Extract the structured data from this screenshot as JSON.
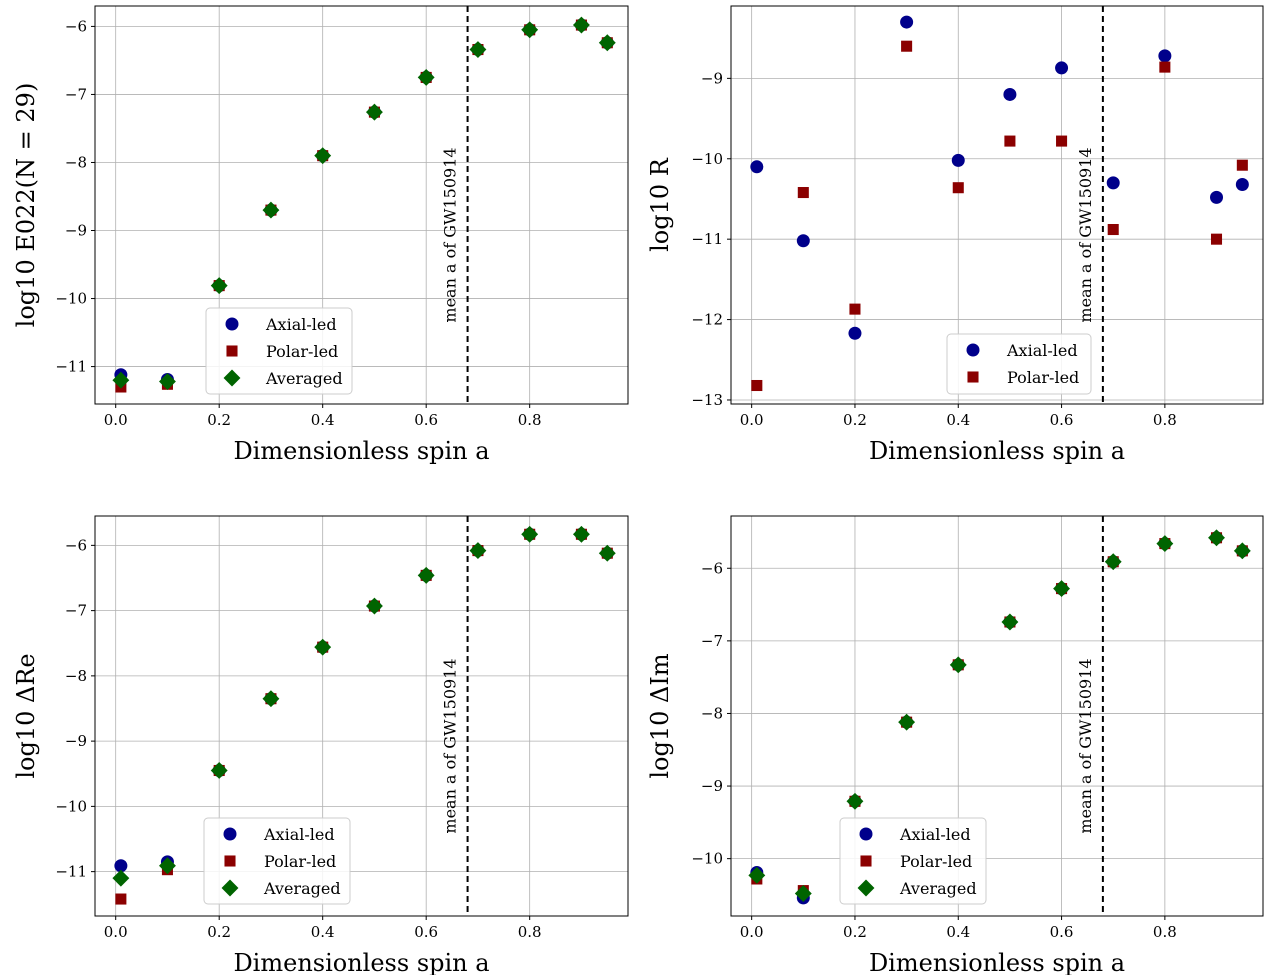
{
  "chart_data": [
    {
      "type": "scatter",
      "xlabel": "Dimensionless spin a",
      "ylabel": "log10 E022(N = 29)",
      "xlim": [
        -0.04,
        0.99
      ],
      "ylim": [
        -11.55,
        -5.7
      ],
      "xticks": [
        0.0,
        0.2,
        0.4,
        0.6,
        0.8
      ],
      "xtick_labels": [
        "0.0",
        "0.2",
        "0.4",
        "0.6",
        "0.8"
      ],
      "yticks": [
        -11,
        -10,
        -9,
        -8,
        -7,
        -6
      ],
      "ytick_labels": [
        "−11",
        "−10",
        "−9",
        "−8",
        "−7",
        "−6"
      ],
      "grid": true,
      "legend_position": "lower-center",
      "vline": {
        "x": 0.68,
        "label": "mean a of GW150914",
        "style": "dashed"
      },
      "series": [
        {
          "name": "Axial-led",
          "marker": "circle",
          "color": "#00008b",
          "x": [
            0.01,
            0.1,
            0.2,
            0.3,
            0.4,
            0.5,
            0.6,
            0.7,
            0.8,
            0.9,
            0.95
          ],
          "y": [
            -11.12,
            -11.19,
            -9.81,
            -8.7,
            -7.9,
            -7.26,
            -6.75,
            -6.34,
            -6.05,
            -5.98,
            -6.24
          ]
        },
        {
          "name": "Polar-led",
          "marker": "square",
          "color": "#8b0000",
          "x": [
            0.01,
            0.1,
            0.2,
            0.3,
            0.4,
            0.5,
            0.6,
            0.7,
            0.8,
            0.9,
            0.95
          ],
          "y": [
            -11.3,
            -11.26,
            -9.81,
            -8.7,
            -7.9,
            -7.26,
            -6.75,
            -6.34,
            -6.05,
            -5.98,
            -6.24
          ]
        },
        {
          "name": "Averaged",
          "marker": "diamond",
          "color": "#006400",
          "x": [
            0.01,
            0.1,
            0.2,
            0.3,
            0.4,
            0.5,
            0.6,
            0.7,
            0.8,
            0.9,
            0.95
          ],
          "y": [
            -11.2,
            -11.22,
            -9.81,
            -8.7,
            -7.9,
            -7.26,
            -6.75,
            -6.34,
            -6.05,
            -5.98,
            -6.24
          ]
        }
      ]
    },
    {
      "type": "scatter",
      "xlabel": "Dimensionless spin a",
      "ylabel": "log10 R",
      "xlim": [
        -0.04,
        0.99
      ],
      "ylim": [
        -13.05,
        -8.1
      ],
      "xticks": [
        0.0,
        0.2,
        0.4,
        0.6,
        0.8
      ],
      "xtick_labels": [
        "0.0",
        "0.2",
        "0.4",
        "0.6",
        "0.8"
      ],
      "yticks": [
        -13,
        -12,
        -11,
        -10,
        -9
      ],
      "ytick_labels": [
        "−13",
        "−12",
        "−11",
        "−10",
        "−9"
      ],
      "grid": true,
      "legend_position": "lower-right",
      "vline": {
        "x": 0.68,
        "label": "mean a of GW150914",
        "style": "dashed"
      },
      "series": [
        {
          "name": "Axial-led",
          "marker": "circle",
          "color": "#00008b",
          "x": [
            0.01,
            0.1,
            0.2,
            0.3,
            0.4,
            0.5,
            0.6,
            0.7,
            0.8,
            0.9,
            0.95
          ],
          "y": [
            -10.1,
            -11.02,
            -12.17,
            -8.3,
            -10.02,
            -9.2,
            -8.87,
            -10.3,
            -8.72,
            -10.48,
            -10.32
          ]
        },
        {
          "name": "Polar-led",
          "marker": "square",
          "color": "#8b0000",
          "x": [
            0.01,
            0.1,
            0.2,
            0.3,
            0.4,
            0.5,
            0.6,
            0.7,
            0.8,
            0.9,
            0.95
          ],
          "y": [
            -12.82,
            -10.42,
            -11.87,
            -8.6,
            -10.36,
            -9.78,
            -9.78,
            -10.88,
            -8.86,
            -11.0,
            -10.08
          ]
        }
      ]
    },
    {
      "type": "scatter",
      "xlabel": "Dimensionless spin a",
      "ylabel": "log10 ΔRe",
      "xlim": [
        -0.04,
        0.99
      ],
      "ylim": [
        -11.68,
        -5.55
      ],
      "xticks": [
        0.0,
        0.2,
        0.4,
        0.6,
        0.8
      ],
      "xtick_labels": [
        "0.0",
        "0.2",
        "0.4",
        "0.6",
        "0.8"
      ],
      "yticks": [
        -11,
        -10,
        -9,
        -8,
        -7,
        -6
      ],
      "ytick_labels": [
        "−11",
        "−10",
        "−9",
        "−8",
        "−7",
        "−6"
      ],
      "grid": true,
      "legend_position": "lower-center",
      "vline": {
        "x": 0.68,
        "label": "mean a of GW150914",
        "style": "dashed"
      },
      "series": [
        {
          "name": "Axial-led",
          "marker": "circle",
          "color": "#00008b",
          "x": [
            0.01,
            0.1,
            0.2,
            0.3,
            0.4,
            0.5,
            0.6,
            0.7,
            0.8,
            0.9,
            0.95
          ],
          "y": [
            -10.91,
            -10.85,
            -9.45,
            -8.35,
            -7.56,
            -6.93,
            -6.46,
            -6.08,
            -5.83,
            -5.83,
            -6.12
          ]
        },
        {
          "name": "Polar-led",
          "marker": "square",
          "color": "#8b0000",
          "x": [
            0.01,
            0.1,
            0.2,
            0.3,
            0.4,
            0.5,
            0.6,
            0.7,
            0.8,
            0.9,
            0.95
          ],
          "y": [
            -11.42,
            -10.97,
            -9.45,
            -8.35,
            -7.56,
            -6.93,
            -6.46,
            -6.08,
            -5.83,
            -5.83,
            -6.12
          ]
        },
        {
          "name": "Averaged",
          "marker": "diamond",
          "color": "#006400",
          "x": [
            0.01,
            0.1,
            0.2,
            0.3,
            0.4,
            0.5,
            0.6,
            0.7,
            0.8,
            0.9,
            0.95
          ],
          "y": [
            -11.1,
            -10.91,
            -9.45,
            -8.35,
            -7.56,
            -6.93,
            -6.46,
            -6.08,
            -5.83,
            -5.83,
            -6.12
          ]
        }
      ]
    },
    {
      "type": "scatter",
      "xlabel": "Dimensionless spin a",
      "ylabel": "log10 ΔIm",
      "xlim": [
        -0.04,
        0.99
      ],
      "ylim": [
        -10.79,
        -5.28
      ],
      "xticks": [
        0.0,
        0.2,
        0.4,
        0.6,
        0.8
      ],
      "xtick_labels": [
        "0.0",
        "0.2",
        "0.4",
        "0.6",
        "0.8"
      ],
      "yticks": [
        -10,
        -9,
        -8,
        -7,
        -6
      ],
      "ytick_labels": [
        "−10",
        "−9",
        "−8",
        "−7",
        "−6"
      ],
      "grid": true,
      "legend_position": "lower-center",
      "vline": {
        "x": 0.68,
        "label": "mean a of GW150914",
        "style": "dashed"
      },
      "series": [
        {
          "name": "Axial-led",
          "marker": "circle",
          "color": "#00008b",
          "x": [
            0.01,
            0.1,
            0.2,
            0.3,
            0.4,
            0.5,
            0.6,
            0.7,
            0.8,
            0.9,
            0.95
          ],
          "y": [
            -10.19,
            -10.54,
            -9.21,
            -8.12,
            -7.33,
            -6.74,
            -6.28,
            -5.91,
            -5.66,
            -5.58,
            -5.76
          ]
        },
        {
          "name": "Polar-led",
          "marker": "square",
          "color": "#8b0000",
          "x": [
            0.01,
            0.1,
            0.2,
            0.3,
            0.4,
            0.5,
            0.6,
            0.7,
            0.8,
            0.9,
            0.95
          ],
          "y": [
            -10.28,
            -10.44,
            -9.21,
            -8.12,
            -7.33,
            -6.74,
            -6.28,
            -5.91,
            -5.66,
            -5.58,
            -5.76
          ]
        },
        {
          "name": "Averaged",
          "marker": "diamond",
          "color": "#006400",
          "x": [
            0.01,
            0.1,
            0.2,
            0.3,
            0.4,
            0.5,
            0.6,
            0.7,
            0.8,
            0.9,
            0.95
          ],
          "y": [
            -10.23,
            -10.48,
            -9.21,
            -8.12,
            -7.33,
            -6.74,
            -6.28,
            -5.91,
            -5.66,
            -5.58,
            -5.76
          ]
        }
      ]
    }
  ]
}
